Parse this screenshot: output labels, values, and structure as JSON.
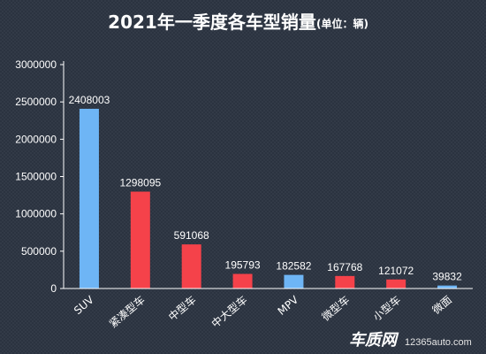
{
  "chart_data": {
    "type": "bar",
    "title": "2021年一季度各车型销量",
    "unit_note": "(单位：辆)",
    "categories": [
      "SUV",
      "紧凑型车",
      "中型车",
      "中大型车",
      "MPV",
      "微型车",
      "小型车",
      "微面"
    ],
    "values": [
      2408003,
      1298095,
      591068,
      195793,
      182582,
      167768,
      121072,
      39832
    ],
    "data_labels": [
      "2408003",
      "1298095",
      "591068",
      "195793",
      "182582",
      "167768",
      "121072",
      "39832"
    ],
    "bar_colors": [
      "#6eb5f5",
      "#f5424a",
      "#f5424a",
      "#f5424a",
      "#6eb5f5",
      "#f5424a",
      "#f5424a",
      "#6eb5f5"
    ],
    "ylim": [
      0,
      3000000
    ],
    "yticks": [
      0,
      500000,
      1000000,
      1500000,
      2000000,
      2500000,
      3000000
    ],
    "ytick_labels": [
      "0",
      "500000",
      "1000000",
      "1500000",
      "2000000",
      "2500000",
      "3000000"
    ],
    "xlabel": "",
    "ylabel": "",
    "grid": false,
    "legend": "none"
  },
  "colors": {
    "background": "#2b3340",
    "text": "#ffffff",
    "axis": "#ffffff",
    "blue_bar": "#6eb5f5",
    "red_bar": "#f5424a"
  },
  "watermark": {
    "brand": "车质网",
    "url": "12365auto.com"
  }
}
